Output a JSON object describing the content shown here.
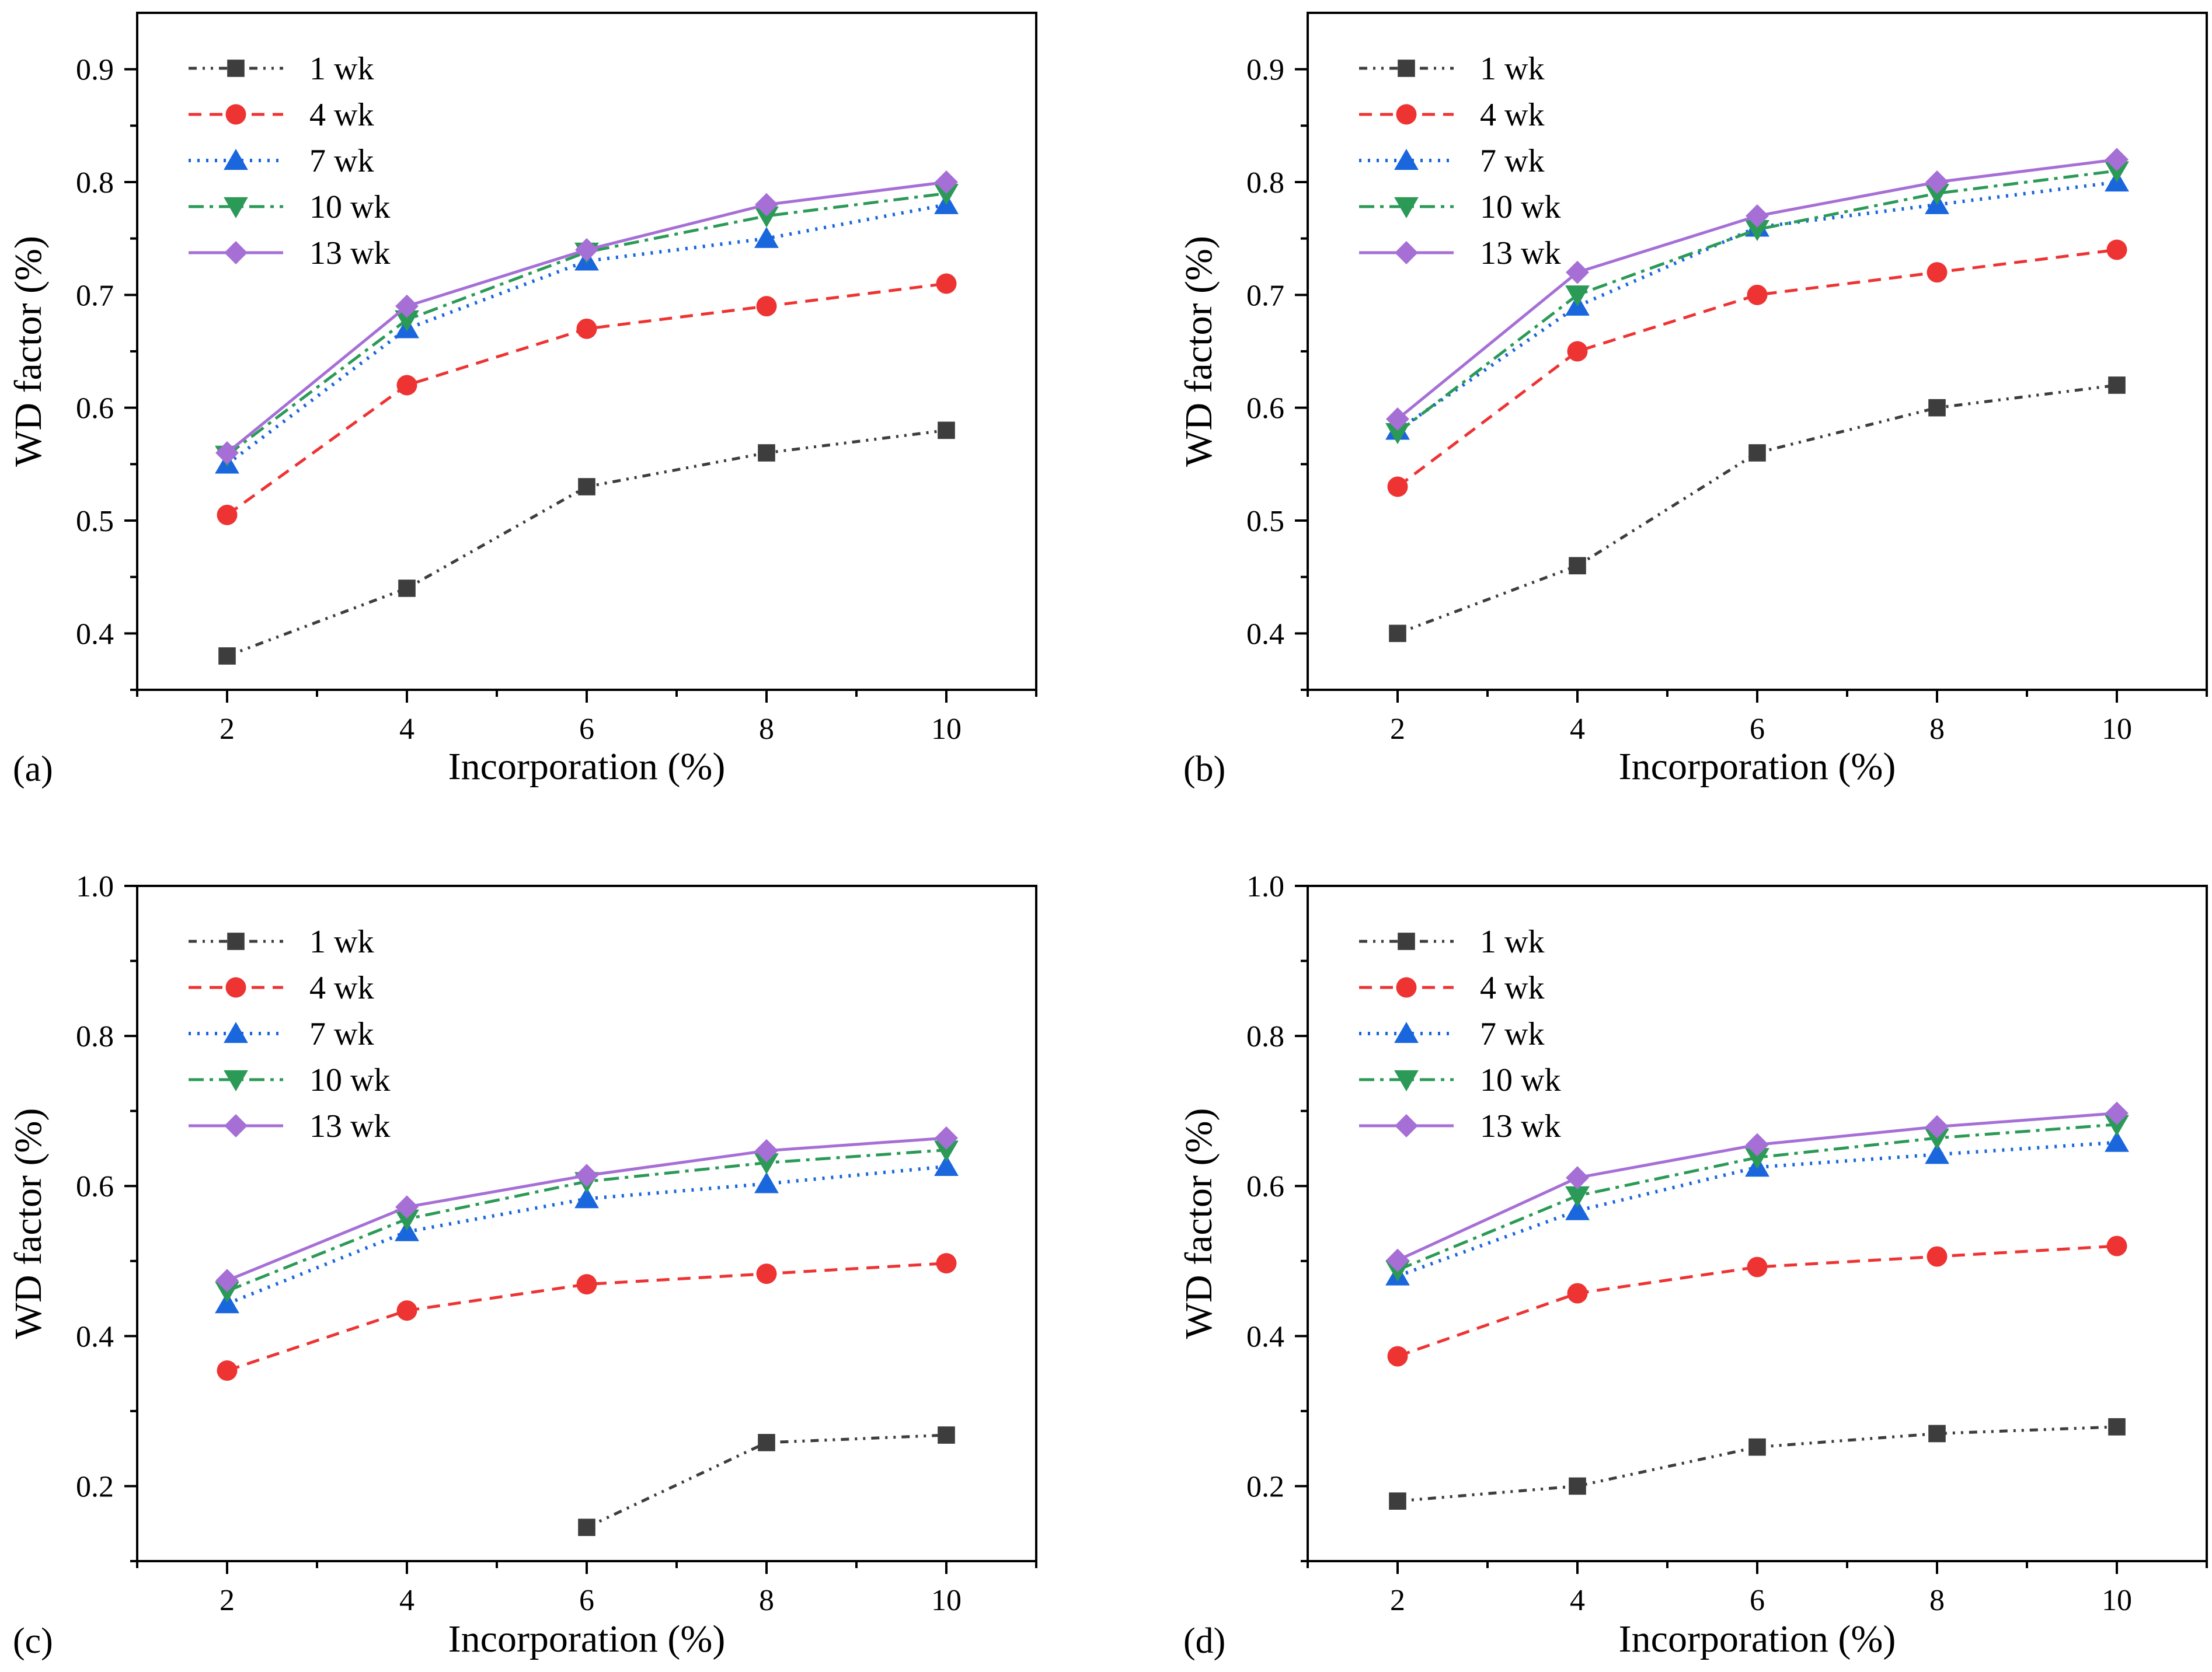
{
  "colors": {
    "1wk": "#3d3d3d",
    "4wk": "#ee3333",
    "7wk": "#1a66dd",
    "10wk": "#2b9a57",
    "13wk": "#a66fd6"
  },
  "chart_data": [
    {
      "type": "line",
      "panel_label": "(a)",
      "xlabel": "Incorporation (%)",
      "ylabel": "WD factor (%)",
      "x": [
        2,
        4,
        6,
        8,
        10
      ],
      "xlim": [
        1,
        11
      ],
      "ylim": [
        0.35,
        0.95
      ],
      "yticks": [
        0.4,
        0.5,
        0.6,
        0.7,
        0.8,
        0.9
      ],
      "yticklabels": [
        "0.4",
        "0.5",
        "0.6",
        "0.7",
        "0.8",
        "0.9"
      ],
      "legend": "top-left",
      "grid": false,
      "series": [
        {
          "name": "1 wk",
          "values": [
            0.38,
            0.44,
            0.53,
            0.56,
            0.58
          ]
        },
        {
          "name": "4 wk",
          "values": [
            0.505,
            0.62,
            0.67,
            0.69,
            0.71
          ]
        },
        {
          "name": "7 wk",
          "values": [
            0.55,
            0.67,
            0.73,
            0.75,
            0.78
          ]
        },
        {
          "name": "10 wk",
          "values": [
            0.558,
            0.678,
            0.738,
            0.77,
            0.79
          ]
        },
        {
          "name": "13 wk",
          "values": [
            0.56,
            0.69,
            0.74,
            0.78,
            0.8
          ]
        }
      ]
    },
    {
      "type": "line",
      "panel_label": "(b)",
      "xlabel": "Incorporation (%)",
      "ylabel": "WD factor (%)",
      "x": [
        2,
        4,
        6,
        8,
        10
      ],
      "xlim": [
        1,
        11
      ],
      "ylim": [
        0.35,
        0.95
      ],
      "yticks": [
        0.4,
        0.5,
        0.6,
        0.7,
        0.8,
        0.9
      ],
      "yticklabels": [
        "0.4",
        "0.5",
        "0.6",
        "0.7",
        "0.8",
        "0.9"
      ],
      "legend": "top-left",
      "grid": false,
      "series": [
        {
          "name": "1 wk",
          "values": [
            0.4,
            0.46,
            0.56,
            0.6,
            0.62
          ]
        },
        {
          "name": "4 wk",
          "values": [
            0.53,
            0.65,
            0.7,
            0.72,
            0.74
          ]
        },
        {
          "name": "7 wk",
          "values": [
            0.58,
            0.69,
            0.76,
            0.78,
            0.8
          ]
        },
        {
          "name": "10 wk",
          "values": [
            0.578,
            0.7,
            0.758,
            0.79,
            0.81
          ]
        },
        {
          "name": "13 wk",
          "values": [
            0.59,
            0.72,
            0.77,
            0.8,
            0.82
          ]
        }
      ]
    },
    {
      "type": "line",
      "panel_label": "(c)",
      "xlabel": "Incorporation (%)",
      "ylabel": "WD factor (%)",
      "x": [
        2,
        4,
        6,
        8,
        10
      ],
      "xlim": [
        1,
        11
      ],
      "ylim": [
        0.1,
        1.0
      ],
      "yticks": [
        0.2,
        0.4,
        0.6,
        0.8,
        1.0
      ],
      "yticklabels": [
        "0.2",
        "0.4",
        "0.6",
        "0.8",
        "1.0"
      ],
      "legend": "top-left",
      "grid": false,
      "series": [
        {
          "name": "1 wk",
          "x": [
            6,
            8,
            10
          ],
          "values": [
            0.145,
            0.258,
            0.268
          ]
        },
        {
          "name": "4 wk",
          "values": [
            0.354,
            0.434,
            0.469,
            0.483,
            0.497
          ]
        },
        {
          "name": "7 wk",
          "values": [
            0.443,
            0.539,
            0.583,
            0.603,
            0.626
          ]
        },
        {
          "name": "10 wk",
          "values": [
            0.46,
            0.556,
            0.606,
            0.631,
            0.648
          ]
        },
        {
          "name": "13 wk",
          "values": [
            0.474,
            0.572,
            0.614,
            0.647,
            0.664
          ]
        }
      ]
    },
    {
      "type": "line",
      "panel_label": "(d)",
      "xlabel": "Incorporation (%)",
      "ylabel": "WD factor (%)",
      "x": [
        2,
        4,
        6,
        8,
        10
      ],
      "xlim": [
        1,
        11
      ],
      "ylim": [
        0.1,
        1.0
      ],
      "yticks": [
        0.2,
        0.4,
        0.6,
        0.8,
        1.0
      ],
      "yticklabels": [
        "0.2",
        "0.4",
        "0.6",
        "0.8",
        "1.0"
      ],
      "legend": "top-left",
      "grid": false,
      "series": [
        {
          "name": "1 wk",
          "values": [
            0.18,
            0.2,
            0.252,
            0.27,
            0.279
          ]
        },
        {
          "name": "4 wk",
          "values": [
            0.373,
            0.457,
            0.492,
            0.506,
            0.52
          ]
        },
        {
          "name": "7 wk",
          "values": [
            0.48,
            0.567,
            0.625,
            0.642,
            0.658
          ]
        },
        {
          "name": "10 wk",
          "values": [
            0.488,
            0.587,
            0.638,
            0.664,
            0.682
          ]
        },
        {
          "name": "13 wk",
          "values": [
            0.501,
            0.611,
            0.655,
            0.679,
            0.697
          ]
        }
      ]
    }
  ]
}
